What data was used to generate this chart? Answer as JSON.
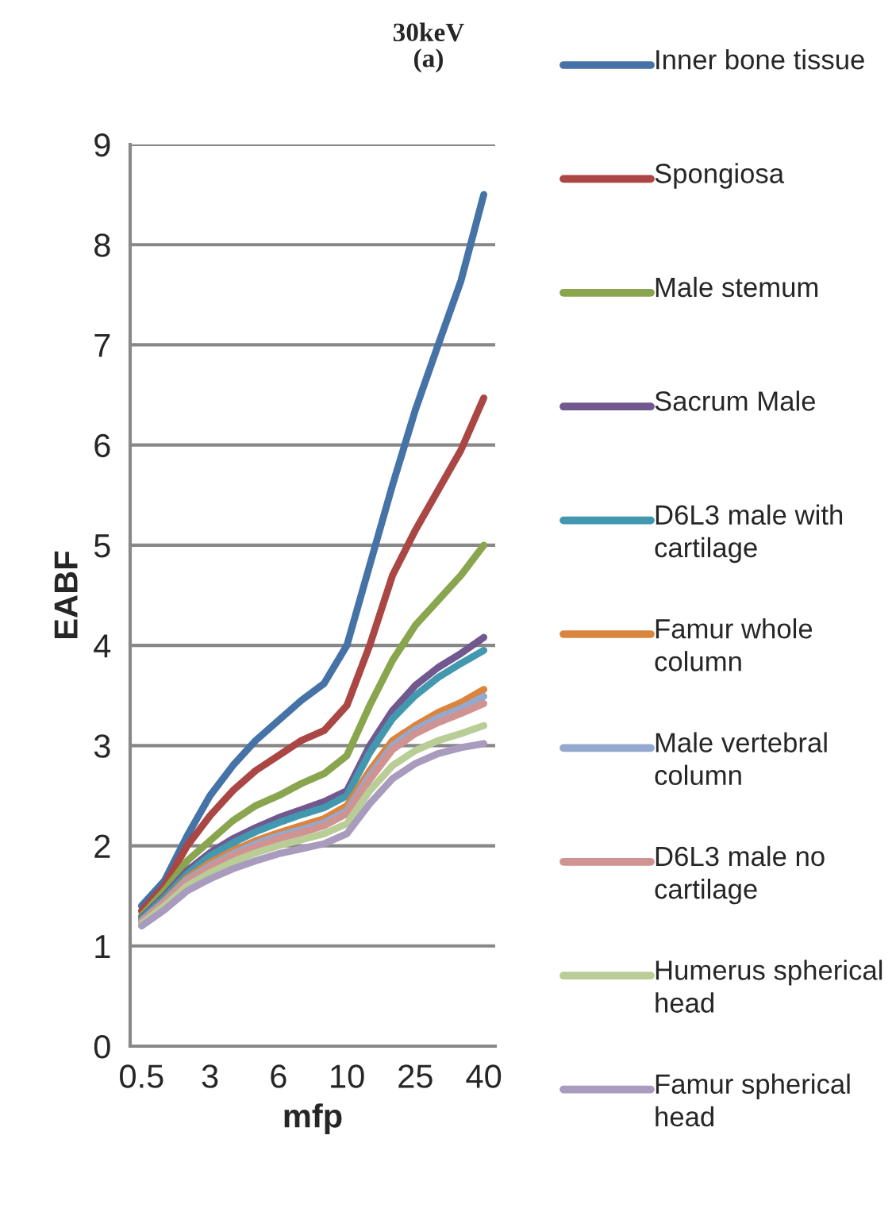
{
  "chart_data": {
    "type": "line",
    "title": "30keV\n(a)",
    "xlabel": "mfp",
    "ylabel": "EABF",
    "categories": [
      "0.5",
      null,
      null,
      "3",
      null,
      null,
      "6",
      null,
      null,
      "10",
      null,
      null,
      "25",
      null,
      null,
      "40"
    ],
    "ylim": [
      0,
      9
    ],
    "yticks": [
      0,
      1,
      2,
      3,
      4,
      5,
      6,
      7,
      8,
      9
    ],
    "grid": "y",
    "legend": "right",
    "marker": "none",
    "line_style": "solid",
    "series": [
      {
        "name": "Inner bone tissue",
        "color": "#4572a7",
        "values": [
          1.4,
          1.65,
          2.1,
          2.5,
          2.8,
          3.05,
          3.25,
          3.45,
          3.62,
          4.0,
          4.8,
          5.6,
          6.35,
          7.0,
          7.64,
          8.5
        ]
      },
      {
        "name": "Spongiosa",
        "color": "#aa4643",
        "values": [
          1.35,
          1.6,
          2.0,
          2.3,
          2.55,
          2.75,
          2.9,
          3.05,
          3.15,
          3.4,
          4.0,
          4.7,
          5.15,
          5.55,
          5.95,
          6.47
        ]
      },
      {
        "name": "Male stemum",
        "color": "#89a54e",
        "values": [
          1.3,
          1.55,
          1.85,
          2.05,
          2.25,
          2.4,
          2.5,
          2.62,
          2.72,
          2.9,
          3.4,
          3.85,
          4.2,
          4.45,
          4.7,
          5.0
        ]
      },
      {
        "name": "Sacrum Male",
        "color": "#71588f",
        "values": [
          1.28,
          1.5,
          1.75,
          1.93,
          2.07,
          2.18,
          2.28,
          2.36,
          2.44,
          2.55,
          3.0,
          3.35,
          3.6,
          3.78,
          3.92,
          4.08
        ]
      },
      {
        "name": "D6L3 male with cartilage",
        "color": "#4198af",
        "values": [
          1.27,
          1.48,
          1.72,
          1.9,
          2.03,
          2.14,
          2.23,
          2.31,
          2.38,
          2.5,
          2.93,
          3.27,
          3.5,
          3.68,
          3.82,
          3.95
        ]
      },
      {
        "name": "Famur whole column",
        "color": "#db843d",
        "values": [
          1.25,
          1.45,
          1.68,
          1.83,
          1.95,
          2.05,
          2.13,
          2.2,
          2.27,
          2.4,
          2.75,
          3.05,
          3.2,
          3.33,
          3.43,
          3.56
        ]
      },
      {
        "name": "Male vertebral column",
        "color": "#93a9cf",
        "values": [
          1.25,
          1.44,
          1.66,
          1.8,
          1.92,
          2.02,
          2.1,
          2.16,
          2.23,
          2.35,
          2.7,
          3.0,
          3.16,
          3.28,
          3.37,
          3.49
        ]
      },
      {
        "name": "D6L3 male no cartilage",
        "color": "#d19392",
        "values": [
          1.24,
          1.43,
          1.64,
          1.78,
          1.9,
          1.99,
          2.07,
          2.13,
          2.2,
          2.32,
          2.66,
          2.96,
          3.12,
          3.23,
          3.32,
          3.42
        ]
      },
      {
        "name": "Humerus spherical head",
        "color": "#b9cd96",
        "values": [
          1.22,
          1.4,
          1.6,
          1.73,
          1.84,
          1.93,
          2.0,
          2.06,
          2.12,
          2.22,
          2.55,
          2.8,
          2.95,
          3.05,
          3.12,
          3.2
        ]
      },
      {
        "name": "Famur spherical head",
        "color": "#a99bbd",
        "values": [
          1.2,
          1.36,
          1.55,
          1.67,
          1.77,
          1.85,
          1.92,
          1.97,
          2.02,
          2.12,
          2.42,
          2.67,
          2.82,
          2.92,
          2.98,
          3.02
        ]
      }
    ]
  }
}
